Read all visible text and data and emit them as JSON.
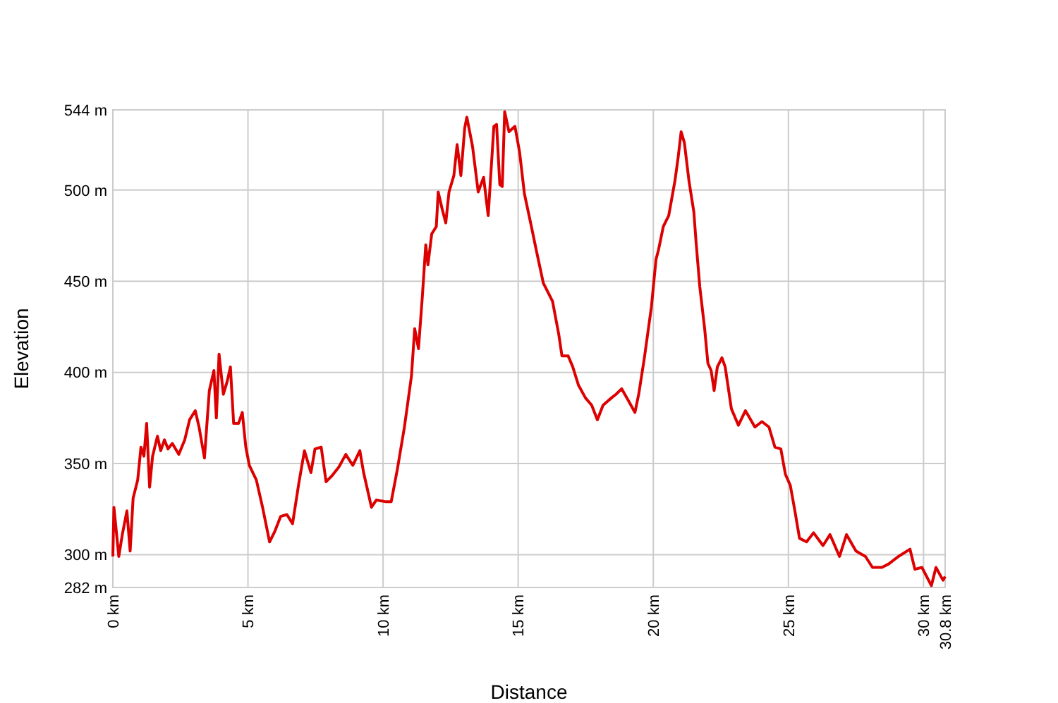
{
  "chart_data": {
    "type": "line",
    "xlabel": "Distance",
    "ylabel": "Elevation",
    "grid": true,
    "xlim": [
      0,
      30.8
    ],
    "ylim": [
      282,
      544
    ],
    "xticks": [
      {
        "value": 0,
        "label": "0 km"
      },
      {
        "value": 5,
        "label": "5 km"
      },
      {
        "value": 10,
        "label": "10 km"
      },
      {
        "value": 15,
        "label": "15 km"
      },
      {
        "value": 20,
        "label": "20 km"
      },
      {
        "value": 25,
        "label": "25 km"
      },
      {
        "value": 30,
        "label": "30 km"
      },
      {
        "value": 30.8,
        "label": "30.8 km"
      }
    ],
    "yticks": [
      {
        "value": 282,
        "label": "282 m"
      },
      {
        "value": 300,
        "label": "300 m"
      },
      {
        "value": 350,
        "label": "350 m"
      },
      {
        "value": 400,
        "label": "400 m"
      },
      {
        "value": 450,
        "label": "450 m"
      },
      {
        "value": 500,
        "label": "500 m"
      },
      {
        "value": 544,
        "label": "544 m"
      }
    ],
    "series": [
      {
        "color": "#dd0000",
        "x": [
          0,
          0.04,
          0.22,
          0.35,
          0.52,
          0.64,
          0.75,
          0.92,
          1.04,
          1.15,
          1.25,
          1.36,
          1.47,
          1.65,
          1.77,
          1.91,
          2.04,
          2.2,
          2.44,
          2.66,
          2.84,
          3.05,
          3.19,
          3.39,
          3.57,
          3.74,
          3.83,
          3.93,
          4.09,
          4.23,
          4.35,
          4.47,
          4.65,
          4.79,
          4.92,
          5.05,
          5.31,
          5.54,
          5.8,
          6.0,
          6.21,
          6.44,
          6.65,
          6.88,
          7.09,
          7.33,
          7.48,
          7.71,
          7.89,
          8.09,
          8.36,
          8.62,
          8.88,
          9.14,
          9.28,
          9.57,
          9.75,
          10.1,
          10.3,
          10.53,
          10.79,
          11.05,
          11.17,
          11.31,
          11.45,
          11.58,
          11.66,
          11.8,
          11.97,
          12.04,
          12.18,
          12.32,
          12.44,
          12.62,
          12.74,
          12.88,
          13.02,
          13.1,
          13.31,
          13.52,
          13.72,
          13.89,
          14.1,
          14.2,
          14.32,
          14.41,
          14.5,
          14.66,
          14.88,
          15.05,
          15.23,
          15.46,
          15.67,
          15.93,
          16.27,
          16.5,
          16.62,
          16.85,
          17.02,
          17.23,
          17.49,
          17.72,
          17.93,
          18.14,
          18.45,
          18.62,
          18.83,
          19.06,
          19.32,
          19.46,
          19.67,
          19.93,
          20.1,
          20.19,
          20.37,
          20.57,
          20.8,
          20.92,
          21.03,
          21.15,
          21.32,
          21.5,
          21.58,
          21.72,
          21.9,
          22.02,
          22.14,
          22.25,
          22.37,
          22.54,
          22.66,
          22.89,
          23.15,
          23.41,
          23.76,
          24.02,
          24.28,
          24.5,
          24.72,
          24.89,
          25.07,
          25.24,
          25.41,
          25.67,
          25.93,
          26.28,
          26.54,
          26.89,
          27.15,
          27.5,
          27.85,
          28.11,
          28.46,
          28.72,
          29.07,
          29.5,
          29.68,
          29.94,
          30.29,
          30.46,
          30.72,
          30.8
        ],
        "values": [
          299,
          326,
          299,
          311,
          324,
          302,
          331,
          341,
          359,
          354,
          372,
          337,
          354,
          365,
          357,
          363,
          358,
          361,
          355,
          363,
          374,
          379,
          370,
          353,
          390,
          401,
          375,
          410,
          388,
          395,
          403,
          372,
          372,
          378,
          359,
          349,
          341,
          326,
          307,
          313,
          321,
          322,
          317,
          339,
          357,
          345,
          358,
          359,
          340,
          343,
          348,
          355,
          349,
          357,
          345,
          326,
          330,
          329,
          329,
          347,
          370,
          398,
          424,
          413,
          441,
          470,
          459,
          476,
          480,
          499,
          490,
          482,
          499,
          508,
          525,
          508,
          534,
          540,
          524,
          499,
          507,
          486,
          535,
          536,
          503,
          502,
          543,
          532,
          535,
          521,
          498,
          482,
          467,
          449,
          439,
          421,
          409,
          409,
          403,
          393,
          386,
          382,
          374,
          382,
          386,
          388,
          391,
          385,
          378,
          388,
          408,
          436,
          462,
          467,
          480,
          486,
          505,
          518,
          532,
          526,
          505,
          488,
          472,
          447,
          424,
          405,
          401,
          390,
          403,
          408,
          403,
          380,
          371,
          379,
          370,
          373,
          370,
          359,
          358,
          344,
          338,
          324,
          309,
          307,
          312,
          305,
          311,
          299,
          311,
          302,
          299,
          293,
          293,
          295,
          299,
          303,
          292,
          293,
          283,
          293,
          286,
          288
        ]
      }
    ]
  }
}
